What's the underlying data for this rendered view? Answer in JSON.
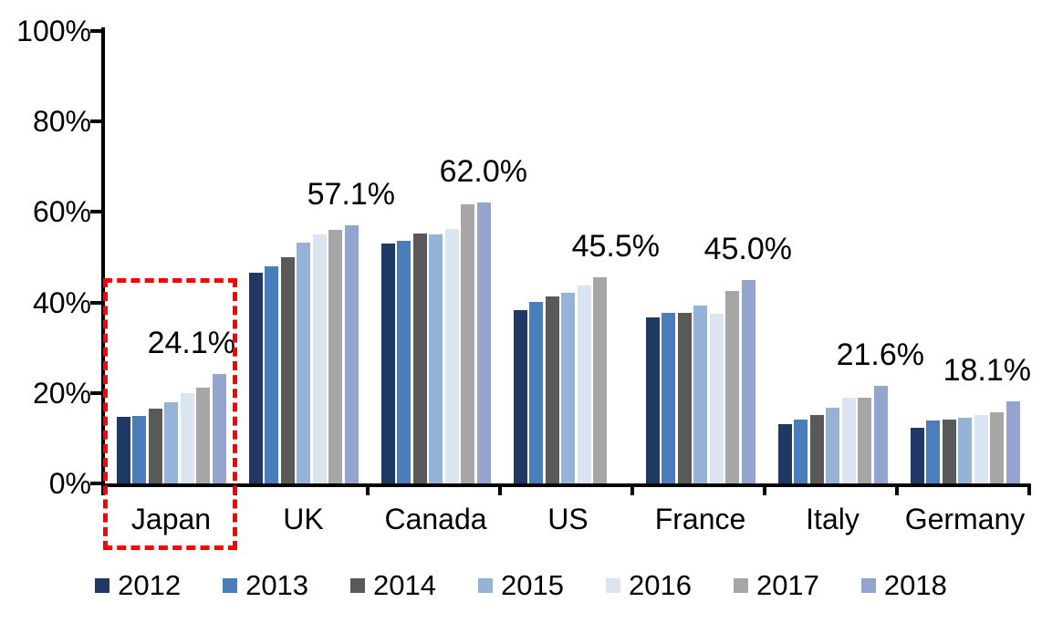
{
  "chart_data": {
    "type": "bar",
    "categories": [
      "Japan",
      "UK",
      "Canada",
      "US",
      "France",
      "Italy",
      "Germany"
    ],
    "series": [
      {
        "name": "2012",
        "color": "#1F3864",
        "values": [
          14.7,
          46.5,
          53.1,
          38.3,
          36.6,
          13.2,
          12.4
        ]
      },
      {
        "name": "2013",
        "color": "#4A7EBB",
        "values": [
          15.0,
          48.0,
          53.6,
          40.1,
          37.7,
          14.1,
          14.0
        ]
      },
      {
        "name": "2014",
        "color": "#595959",
        "values": [
          16.5,
          50.0,
          55.2,
          41.3,
          37.8,
          15.2,
          14.2
        ]
      },
      {
        "name": "2015",
        "color": "#95B3D7",
        "values": [
          17.9,
          53.2,
          55.0,
          42.2,
          39.3,
          16.7,
          14.6
        ]
      },
      {
        "name": "2016",
        "color": "#DBE5F1",
        "values": [
          20.0,
          55.0,
          56.3,
          43.7,
          37.5,
          18.9,
          15.2
        ]
      },
      {
        "name": "2017",
        "color": "#A6A6A6",
        "values": [
          21.2,
          56.0,
          61.7,
          45.5,
          42.5,
          19.0,
          15.8
        ]
      },
      {
        "name": "2018",
        "color": "#93A5CF",
        "values": [
          24.1,
          57.1,
          62.0,
          null,
          45.0,
          21.6,
          18.1
        ]
      }
    ],
    "group_labels": [
      "24.1%",
      "57.1%",
      "62.0%",
      "45.5%",
      "45.0%",
      "21.6%",
      "18.1%"
    ],
    "y_ticks": [
      "100%",
      "80%",
      "60%",
      "40%",
      "20%",
      "0%"
    ],
    "ylim": [
      0,
      100
    ],
    "grid": false,
    "legend_position": "bottom",
    "highlight": {
      "category": "Japan",
      "color": "#FF0000",
      "style": "dashed-rectangle"
    }
  }
}
